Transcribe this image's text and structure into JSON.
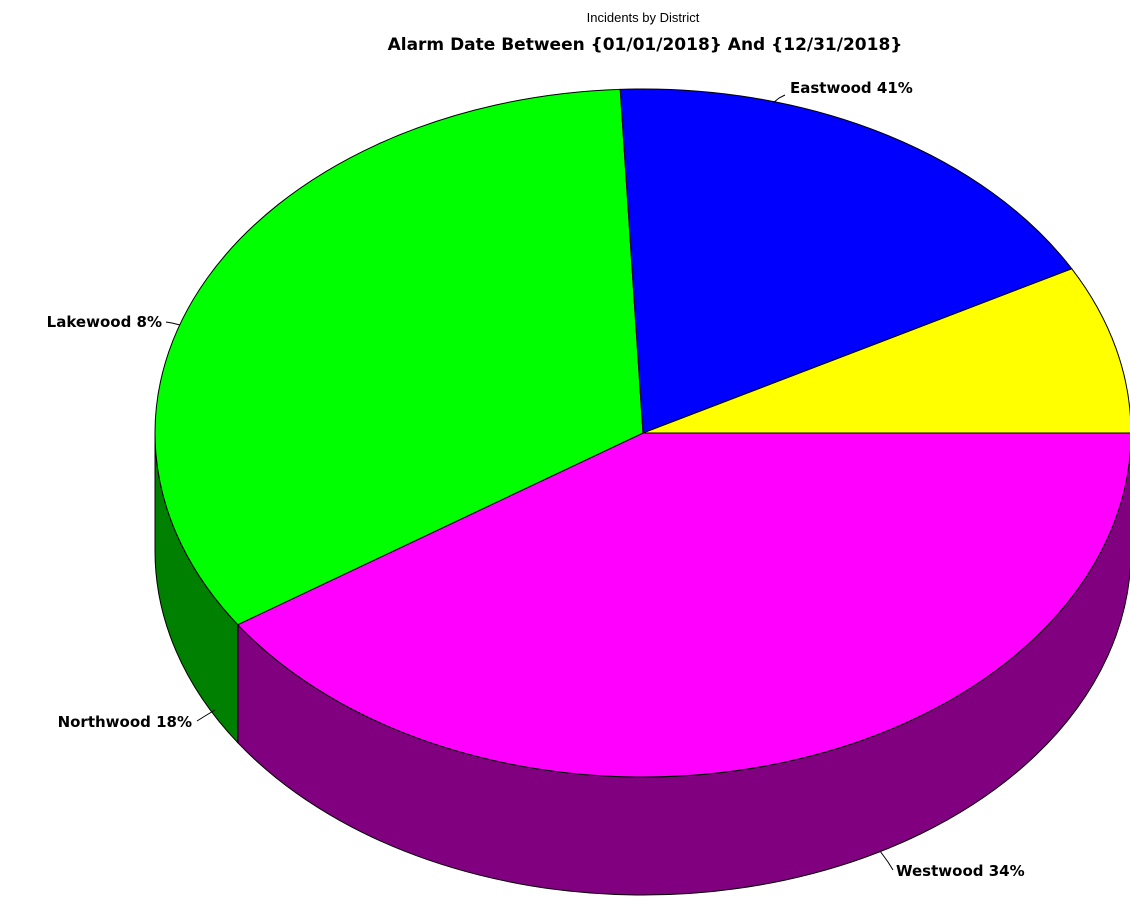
{
  "chart_data": {
    "type": "pie",
    "title": "Incidents by District",
    "subtitle": "Alarm Date Between {01/01/2018} And {12/31/2018}",
    "three_d": true,
    "slices": [
      {
        "name": "Eastwood",
        "percent": 41,
        "label": "Eastwood 41%",
        "color": "#ff00ff",
        "side_color": "#800080"
      },
      {
        "name": "Westwood",
        "percent": 34,
        "label": "Westwood 34%",
        "color": "#00ff00",
        "side_color": "#008000"
      },
      {
        "name": "Northwood",
        "percent": 18,
        "label": "Northwood 18%",
        "color": "#0000ff",
        "side_color": "#000080"
      },
      {
        "name": "Lakewood",
        "percent": 8,
        "label": "Lakewood 8%",
        "color": "#ffff00",
        "side_color": "#808000"
      }
    ]
  }
}
